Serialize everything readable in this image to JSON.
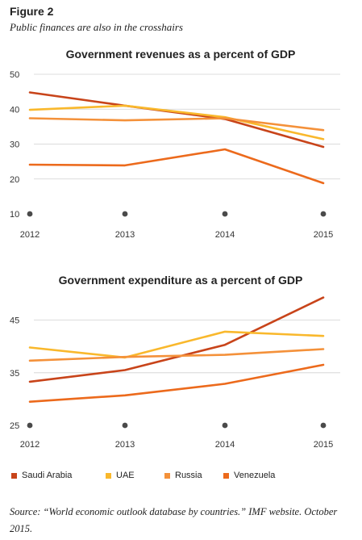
{
  "figure": {
    "label": "Figure 2",
    "subtitle": "Public finances are also in the crosshairs",
    "source": "Source: “World economic outlook database by countries.” IMF website. October 2015."
  },
  "legend": [
    {
      "name": "Saudi Arabia",
      "color": "#c8441a"
    },
    {
      "name": "UAE",
      "color": "#f9b82c"
    },
    {
      "name": "Russia",
      "color": "#f4913a"
    },
    {
      "name": "Venezuela",
      "color": "#ec6a1c"
    }
  ],
  "chart_data": [
    {
      "type": "line",
      "title": "Government revenues as a percent of GDP",
      "xlabel": "",
      "ylabel": "",
      "categories": [
        "2012",
        "2013",
        "2014",
        "2015"
      ],
      "yticks": [
        10,
        20,
        30,
        40,
        50
      ],
      "ylim": [
        10,
        50
      ],
      "grid": true,
      "legend_position": "bottom",
      "series": [
        {
          "name": "Saudi Arabia",
          "color": "#c8441a",
          "values": [
            44.8,
            41.0,
            37.2,
            29.2
          ]
        },
        {
          "name": "UAE",
          "color": "#f9b82c",
          "values": [
            39.8,
            41.0,
            37.7,
            31.4
          ]
        },
        {
          "name": "Russia",
          "color": "#f4913a",
          "values": [
            37.4,
            36.8,
            37.4,
            34.0
          ]
        },
        {
          "name": "Venezuela",
          "color": "#ec6a1c",
          "values": [
            24.1,
            23.9,
            28.5,
            18.8
          ]
        }
      ]
    },
    {
      "type": "line",
      "title": "Government expenditure as a percent of GDP",
      "xlabel": "",
      "ylabel": "",
      "categories": [
        "2012",
        "2013",
        "2014",
        "2015"
      ],
      "yticks": [
        25,
        35,
        45
      ],
      "ylim": [
        25,
        50
      ],
      "grid": true,
      "legend_position": "bottom",
      "series": [
        {
          "name": "Saudi Arabia",
          "color": "#c8441a",
          "values": [
            33.3,
            35.5,
            40.3,
            49.3
          ]
        },
        {
          "name": "UAE",
          "color": "#f9b82c",
          "values": [
            39.8,
            37.9,
            42.8,
            42.0
          ]
        },
        {
          "name": "Russia",
          "color": "#f4913a",
          "values": [
            37.3,
            38.0,
            38.4,
            39.5
          ]
        },
        {
          "name": "Venezuela",
          "color": "#ec6a1c",
          "values": [
            29.5,
            30.7,
            32.9,
            36.5
          ]
        }
      ]
    }
  ]
}
